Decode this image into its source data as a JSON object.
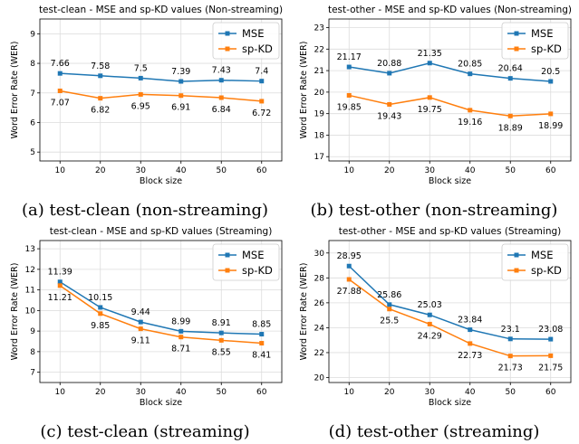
{
  "colors": {
    "mse": "#1f77b4",
    "spkd": "#ff7f0e",
    "grid": "#dcdcdc"
  },
  "legend_labels": [
    "MSE",
    "sp-KD"
  ],
  "chart_data": [
    {
      "type": "line",
      "title": "test-clean - MSE and sp-KD values (Non-streaming)",
      "xlabel": "Block size",
      "ylabel": "Word Error Rate (WER)",
      "x": [
        10,
        20,
        30,
        40,
        50,
        60
      ],
      "ylim": [
        4.7,
        9.5
      ],
      "yticks": [
        5,
        6,
        7,
        8,
        9
      ],
      "grid": true,
      "legend_position": "top-right",
      "series": [
        {
          "name": "MSE",
          "values": [
            7.66,
            7.58,
            7.5,
            7.39,
            7.43,
            7.4
          ],
          "labels": [
            "7.66",
            "7.58",
            "7.5",
            "7.39",
            "7.43",
            "7.4"
          ],
          "label_pos": "above"
        },
        {
          "name": "sp-KD",
          "values": [
            7.07,
            6.82,
            6.95,
            6.91,
            6.84,
            6.72
          ],
          "labels": [
            "7.07",
            "6.82",
            "6.95",
            "6.91",
            "6.84",
            "6.72"
          ],
          "label_pos": "below"
        }
      ],
      "caption": "(a) test-clean (non-streaming)"
    },
    {
      "type": "line",
      "title": "test-other - MSE and sp-KD values (Non-streaming)",
      "xlabel": "Block size",
      "ylabel": "Word Error Rate (WER)",
      "x": [
        10,
        20,
        30,
        40,
        50,
        60
      ],
      "ylim": [
        16.8,
        23.4
      ],
      "yticks": [
        17,
        18,
        19,
        20,
        21,
        22,
        23
      ],
      "grid": true,
      "legend_position": "top-right",
      "series": [
        {
          "name": "MSE",
          "values": [
            21.17,
            20.88,
            21.35,
            20.85,
            20.64,
            20.5
          ],
          "labels": [
            "21.17",
            "20.88",
            "21.35",
            "20.85",
            "20.64",
            "20.5"
          ],
          "label_pos": "above"
        },
        {
          "name": "sp-KD",
          "values": [
            19.85,
            19.43,
            19.75,
            19.16,
            18.89,
            18.99
          ],
          "labels": [
            "19.85",
            "19.43",
            "19.75",
            "19.16",
            "18.89",
            "18.99"
          ],
          "label_pos": "below"
        }
      ],
      "caption": "(b) test-other (non-streaming)"
    },
    {
      "type": "line",
      "title": "test-clean - MSE and sp-KD values (Streaming)",
      "xlabel": "Block size",
      "ylabel": "Word Error Rate (WER)",
      "x": [
        10,
        20,
        30,
        40,
        50,
        60
      ],
      "ylim": [
        6.5,
        13.4
      ],
      "yticks": [
        7,
        8,
        9,
        10,
        11,
        12,
        13
      ],
      "grid": true,
      "legend_position": "top-right",
      "series": [
        {
          "name": "MSE",
          "values": [
            11.39,
            10.15,
            9.44,
            8.99,
            8.91,
            8.85
          ],
          "labels": [
            "11.39",
            "10.15",
            "9.44",
            "8.99",
            "8.91",
            "8.85"
          ],
          "label_pos": "above"
        },
        {
          "name": "sp-KD",
          "values": [
            11.21,
            9.85,
            9.11,
            8.71,
            8.55,
            8.41
          ],
          "labels": [
            "11.21",
            "9.85",
            "9.11",
            "8.71",
            "8.55",
            "8.41"
          ],
          "label_pos": "below"
        }
      ],
      "caption": "(c) test-clean (streaming)"
    },
    {
      "type": "line",
      "title": "test-other - MSE and sp-KD values (Streaming)",
      "xlabel": "Block size",
      "ylabel": "Word Error Rate (WER)",
      "x": [
        10,
        20,
        30,
        40,
        50,
        60
      ],
      "ylim": [
        19.6,
        31
      ],
      "yticks": [
        20,
        22,
        24,
        26,
        28,
        30
      ],
      "grid": true,
      "legend_position": "top-right",
      "series": [
        {
          "name": "MSE",
          "values": [
            28.95,
            25.86,
            25.03,
            23.84,
            23.1,
            23.08
          ],
          "labels": [
            "28.95",
            "25.86",
            "25.03",
            "23.84",
            "23.1",
            "23.08"
          ],
          "label_pos": "above"
        },
        {
          "name": "sp-KD",
          "values": [
            27.88,
            25.5,
            24.29,
            22.73,
            21.73,
            21.75
          ],
          "labels": [
            "27.88",
            "25.5",
            "24.29",
            "22.73",
            "21.73",
            "21.75"
          ],
          "label_pos": "below"
        }
      ],
      "caption": "(d) test-other (streaming)"
    }
  ]
}
